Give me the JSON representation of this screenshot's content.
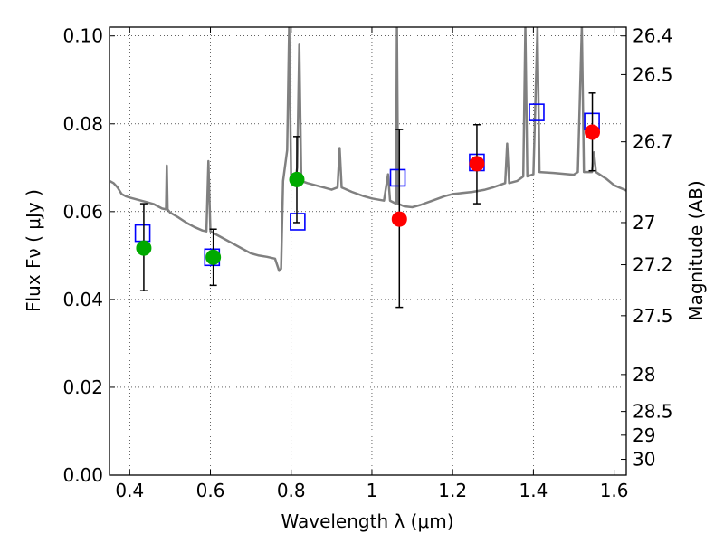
{
  "chart_data": {
    "type": "scatter",
    "xlabel": "Wavelength  λ (μm)",
    "ylabel": "Flux  Fν  ( μJy )",
    "ylabel_right": "Magnitude (AB)",
    "xlim": [
      0.35,
      1.63
    ],
    "ylim": [
      0.0,
      0.102
    ],
    "x_ticks": [
      {
        "value": 0.4,
        "label": "0.4"
      },
      {
        "value": 0.6,
        "label": "0.6"
      },
      {
        "value": 0.8,
        "label": "0.8"
      },
      {
        "value": 1.0,
        "label": "1"
      },
      {
        "value": 1.2,
        "label": "1.2"
      },
      {
        "value": 1.4,
        "label": "1.4"
      },
      {
        "value": 1.6,
        "label": "1.6"
      }
    ],
    "y_ticks": [
      {
        "value": 0.0,
        "label": "0.00"
      },
      {
        "value": 0.02,
        "label": "0.02"
      },
      {
        "value": 0.04,
        "label": "0.04"
      },
      {
        "value": 0.06,
        "label": "0.06"
      },
      {
        "value": 0.08,
        "label": "0.08"
      },
      {
        "value": 0.1,
        "label": "0.10"
      }
    ],
    "y_right_ticks": [
      {
        "label": "26.4",
        "flux": 0.1
      },
      {
        "label": "26.5",
        "flux": 0.0912
      },
      {
        "label": "26.7",
        "flux": 0.0759
      },
      {
        "label": "27",
        "flux": 0.0575
      },
      {
        "label": "27.2",
        "flux": 0.0479
      },
      {
        "label": "27.5",
        "flux": 0.0363
      },
      {
        "label": "28",
        "flux": 0.0229
      },
      {
        "label": "28.5",
        "flux": 0.0145
      },
      {
        "label": "29",
        "flux": 0.0091
      },
      {
        "label": "30",
        "flux": 0.0036
      }
    ],
    "grid": true,
    "colors": {
      "model": "#808080",
      "green": "#00aa00",
      "red": "#ff0000",
      "box": "#0000ff",
      "errorbar": "#000000"
    },
    "model_spectrum": [
      [
        0.35,
        0.067
      ],
      [
        0.36,
        0.0665
      ],
      [
        0.37,
        0.0655
      ],
      [
        0.38,
        0.064
      ],
      [
        0.39,
        0.0635
      ],
      [
        0.4,
        0.0632
      ],
      [
        0.42,
        0.0627
      ],
      [
        0.44,
        0.0622
      ],
      [
        0.46,
        0.0617
      ],
      [
        0.48,
        0.0607
      ],
      [
        0.49,
        0.0605
      ],
      [
        0.492,
        0.0705
      ],
      [
        0.494,
        0.0605
      ],
      [
        0.5,
        0.0598
      ],
      [
        0.52,
        0.0587
      ],
      [
        0.54,
        0.0575
      ],
      [
        0.56,
        0.0565
      ],
      [
        0.58,
        0.0557
      ],
      [
        0.59,
        0.0555
      ],
      [
        0.595,
        0.0715
      ],
      [
        0.6,
        0.0555
      ],
      [
        0.62,
        0.0545
      ],
      [
        0.64,
        0.0535
      ],
      [
        0.66,
        0.0525
      ],
      [
        0.68,
        0.0515
      ],
      [
        0.7,
        0.0505
      ],
      [
        0.72,
        0.05
      ],
      [
        0.74,
        0.0497
      ],
      [
        0.76,
        0.0493
      ],
      [
        0.77,
        0.0465
      ],
      [
        0.775,
        0.047
      ],
      [
        0.78,
        0.067
      ],
      [
        0.79,
        0.074
      ],
      [
        0.795,
        0.102
      ],
      [
        0.8,
        0.067
      ],
      [
        0.81,
        0.067
      ],
      [
        0.815,
        0.07
      ],
      [
        0.82,
        0.098
      ],
      [
        0.825,
        0.067
      ],
      [
        0.84,
        0.0665
      ],
      [
        0.86,
        0.066
      ],
      [
        0.88,
        0.0655
      ],
      [
        0.9,
        0.065
      ],
      [
        0.915,
        0.0655
      ],
      [
        0.92,
        0.0745
      ],
      [
        0.925,
        0.0655
      ],
      [
        0.95,
        0.0645
      ],
      [
        0.98,
        0.0635
      ],
      [
        1.0,
        0.063
      ],
      [
        1.03,
        0.0625
      ],
      [
        1.04,
        0.0685
      ],
      [
        1.045,
        0.0625
      ],
      [
        1.06,
        0.0618
      ],
      [
        1.062,
        0.102
      ],
      [
        1.065,
        0.0618
      ],
      [
        1.08,
        0.0612
      ],
      [
        1.1,
        0.061
      ],
      [
        1.12,
        0.0615
      ],
      [
        1.15,
        0.0625
      ],
      [
        1.18,
        0.0635
      ],
      [
        1.2,
        0.064
      ],
      [
        1.25,
        0.0645
      ],
      [
        1.28,
        0.065
      ],
      [
        1.3,
        0.0655
      ],
      [
        1.33,
        0.0665
      ],
      [
        1.335,
        0.0755
      ],
      [
        1.34,
        0.0665
      ],
      [
        1.36,
        0.067
      ],
      [
        1.375,
        0.068
      ],
      [
        1.38,
        0.102
      ],
      [
        1.385,
        0.068
      ],
      [
        1.4,
        0.0685
      ],
      [
        1.41,
        0.102
      ],
      [
        1.415,
        0.069
      ],
      [
        1.45,
        0.0688
      ],
      [
        1.5,
        0.0684
      ],
      [
        1.51,
        0.069
      ],
      [
        1.52,
        0.102
      ],
      [
        1.525,
        0.069
      ],
      [
        1.545,
        0.069
      ],
      [
        1.55,
        0.0735
      ],
      [
        1.555,
        0.069
      ],
      [
        1.58,
        0.0675
      ],
      [
        1.6,
        0.066
      ],
      [
        1.63,
        0.0648
      ]
    ],
    "observed": [
      {
        "x": 0.435,
        "y": 0.0517,
        "yerr_low": 0.042,
        "yerr_high": 0.0618,
        "color": "green"
      },
      {
        "x": 0.607,
        "y": 0.0496,
        "yerr_low": 0.0432,
        "yerr_high": 0.056,
        "color": "green"
      },
      {
        "x": 0.814,
        "y": 0.0673,
        "yerr_low": 0.0575,
        "yerr_high": 0.0771,
        "color": "green"
      },
      {
        "x": 1.068,
        "y": 0.0583,
        "yerr_low": 0.0382,
        "yerr_high": 0.0787,
        "color": "red"
      },
      {
        "x": 1.26,
        "y": 0.0709,
        "yerr_low": 0.0618,
        "yerr_high": 0.0798,
        "color": "red"
      },
      {
        "x": 1.546,
        "y": 0.0781,
        "yerr_low": 0.0693,
        "yerr_high": 0.087,
        "color": "red"
      }
    ],
    "model_boxes": [
      {
        "x": 0.432,
        "y": 0.0551
      },
      {
        "x": 0.604,
        "y": 0.0496
      },
      {
        "x": 0.816,
        "y": 0.0577
      },
      {
        "x": 1.064,
        "y": 0.0677
      },
      {
        "x": 1.26,
        "y": 0.0712
      },
      {
        "x": 1.408,
        "y": 0.0826
      },
      {
        "x": 1.545,
        "y": 0.0805
      }
    ]
  }
}
